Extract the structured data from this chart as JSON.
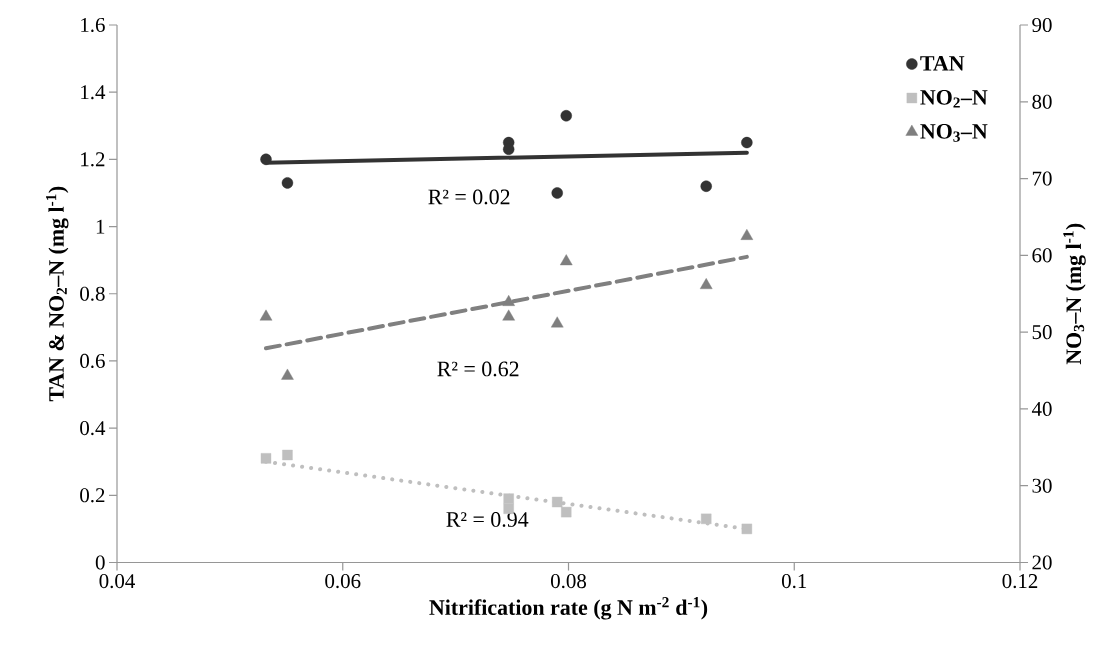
{
  "chart_data": {
    "type": "scatter",
    "xlabel": "Nitrification rate (g N m$^{-2}$ d$^{-1}$)",
    "ylabel": "TAN & NO$_{2}$–N (mg l$^{-1}$)",
    "y2label": "NO$_{3}$–N (mg l$^{-1}$)",
    "xlim": [
      0.04,
      0.12
    ],
    "xticks": [
      0.04,
      0.06,
      0.08,
      0.1,
      0.12
    ],
    "ylim": [
      0,
      1.6
    ],
    "yticks": [
      0,
      0.2,
      0.4,
      0.6,
      0.8,
      1,
      1.2,
      1.4,
      1.6
    ],
    "y2lim": [
      20,
      90
    ],
    "y2ticks": [
      20,
      30,
      40,
      50,
      60,
      70,
      80,
      90
    ],
    "grid": false,
    "legend": "top right",
    "series": [
      {
        "name": "TAN",
        "marker": "circle",
        "color": "#333333",
        "x": [
          0.0532,
          0.0551,
          0.0747,
          0.0747,
          0.0798,
          0.079,
          0.0922,
          0.0958
        ],
        "values": [
          1.2,
          1.13,
          1.25,
          1.23,
          1.33,
          1.1,
          1.12,
          1.25
        ]
      },
      {
        "name": "NO$_{2}$–N",
        "marker": "square",
        "color": "#bfbfbf",
        "x": [
          0.0532,
          0.0551,
          0.0747,
          0.0747,
          0.079,
          0.0798,
          0.0922,
          0.0958
        ],
        "values": [
          0.31,
          0.32,
          0.19,
          0.16,
          0.18,
          0.15,
          0.13,
          0.1
        ]
      },
      {
        "name": "NO$_{3}$–N",
        "marker": "triangle",
        "color": "#7f7f7f",
        "axis": "y2",
        "x": [
          0.0532,
          0.0551,
          0.0747,
          0.0747,
          0.0798,
          0.079,
          0.0922,
          0.0958
        ],
        "values": [
          52.0,
          44.3,
          53.9,
          52.0,
          59.2,
          51.1,
          56.1,
          62.5
        ]
      },
      {
        "type": "line",
        "marker": "none",
        "line_style": "solid",
        "color": "#333333",
        "x": [
          0.0532,
          0.0958
        ],
        "values": [
          1.19,
          1.22
        ]
      },
      {
        "type": "line",
        "marker": "none",
        "line_style": "dotted",
        "color": "#bfbfbf",
        "x": [
          0.0532,
          0.0958
        ],
        "values": [
          0.3,
          0.1
        ]
      },
      {
        "type": "line",
        "marker": "none",
        "line_style": "dashed",
        "color": "#808080",
        "axis": "y2",
        "x": [
          0.0532,
          0.0958
        ],
        "values": [
          47.9,
          59.8
        ]
      }
    ],
    "annotations": [
      "R² = 0.02",
      "R² = 0.62",
      "R² = 0.94"
    ]
  }
}
